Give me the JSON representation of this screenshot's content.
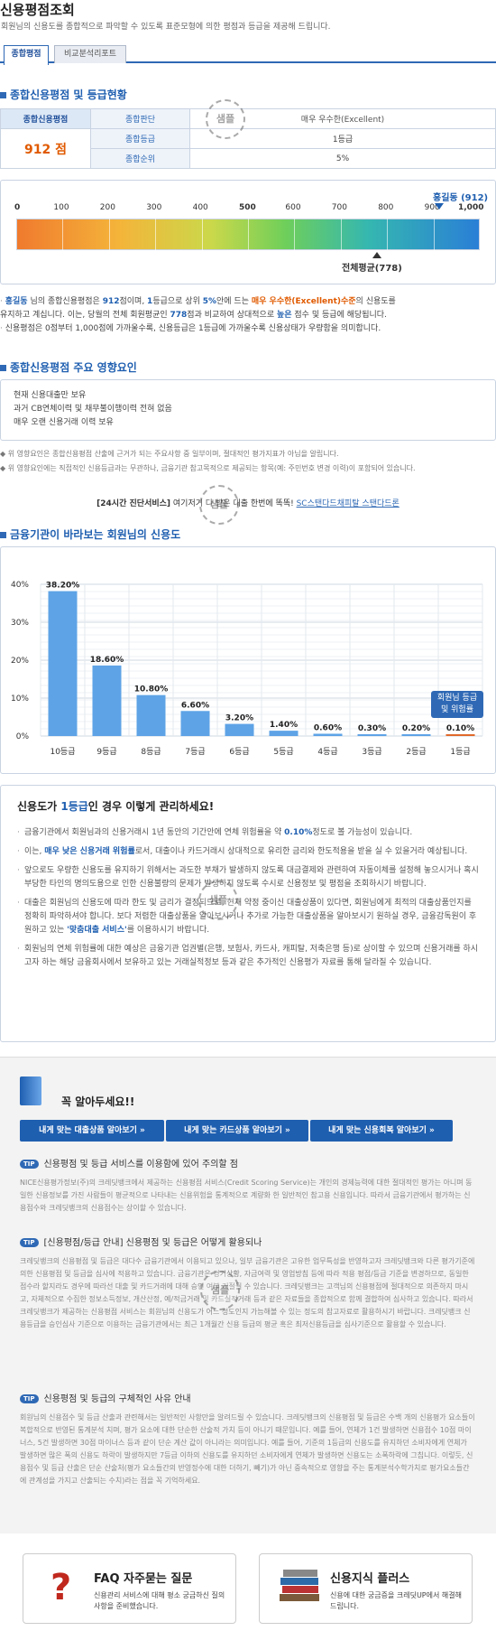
{
  "header": {
    "title": "신용평점조회",
    "subtitle": "회원님의 신용도를 종합적으로 파악할 수 있도록 표준모형에 의한 평점과 등급을 제공해 드립니다."
  },
  "tabs": [
    {
      "label": "종합평점",
      "active": true
    },
    {
      "label": "비교분석리포트",
      "active": false
    }
  ],
  "stamp_text": "샘플",
  "summary": {
    "heading": "종합신용평점 및 등급현황",
    "score_label": "종합신용평점",
    "score_value": "912 점",
    "rows": [
      {
        "label": "종합판단",
        "value": "매우 우수한(Excellent)"
      },
      {
        "label": "종합등급",
        "value": "1등급"
      },
      {
        "label": "종합순위",
        "value": "5%"
      }
    ]
  },
  "scale": {
    "ticks": [
      "0",
      "100",
      "200",
      "300",
      "400",
      "500",
      "600",
      "700",
      "800",
      "900",
      "1,000"
    ],
    "user_marker_label": "홍길동 (912)",
    "avg_marker_label": "전체평균(778)",
    "user_score": 912,
    "avg_score": 778,
    "max": 1000
  },
  "summary_text": {
    "name": "홍길동",
    "line1_a": " 님의 종합신용평점은 ",
    "score": "912",
    "line1_b": "점이며, ",
    "grade": "1",
    "line1_c": "등급으로 상위 ",
    "pct": "5%",
    "line1_d": "안에 드는 ",
    "judgement": "매우 우수한(Excellent)수준",
    "line1_e": "의 신용도를",
    "line2_a": "유지하고 계십니다. 이는, 당월의 전체 회원평균인 ",
    "avg": "778",
    "line2_b": "점과 비교하여 상대적으로 ",
    "compare": "높은",
    "line2_c": " 점수 및 등급에 해당됩니다.",
    "line3": "신용평점은 0점부터 1,000점에 가까울수록, 신용등급은 1등급에 가까울수록 신용상태가 우량함을 의미합니다."
  },
  "factors": {
    "heading": "종합신용평점 주요 영향요인",
    "items": [
      "현재 신용대출만 보유",
      "과거 CB연체이력 및 채무불이행이력 전혀 없음",
      "매우 오랜 신용거래 이력 보유"
    ],
    "note1": "위 영향요인은 종합신용평점 산출에 근거가 되는 주요사항 중 일부이며, 절대적인 평가지표가 아님을 알립니다.",
    "note2": "위 영향요인에는 직접적인 신용등급과는 무관하나, 금융기관 참고목적으로 제공되는 항목(예: 주민번호 변경 이력)이 포함되어 있습니다."
  },
  "service_line": {
    "bracket": "[24시간 진단서비스]",
    "text": " 여기저기 다 받은 대출 한번에 똑똑! ",
    "link": "SC스탠다드채피탈 스탠다드론"
  },
  "chart_heading": "금융기관이 바라보는 회원님의 신용도",
  "chart_badge": "회원님 등급\n및 위험률",
  "chart_data": {
    "type": "bar",
    "categories": [
      "10등급",
      "9등급",
      "8등급",
      "7등급",
      "6등급",
      "5등급",
      "4등급",
      "3등급",
      "2등급",
      "1등급"
    ],
    "values": [
      38.2,
      18.6,
      10.8,
      6.6,
      3.2,
      1.4,
      0.6,
      0.3,
      0.2,
      0.1
    ],
    "labels": [
      "38.20%",
      "18.60%",
      "10.80%",
      "6.60%",
      "3.20%",
      "1.40%",
      "0.60%",
      "0.30%",
      "0.20%",
      "0.10%"
    ],
    "yticks": [
      "40%",
      "30%",
      "20%",
      "10%",
      "0%"
    ],
    "ylim": [
      0,
      40
    ],
    "highlight_index": 9,
    "colors": {
      "bar": "#5ea3e6",
      "highlight": "#e0692a"
    }
  },
  "manage": {
    "title_a": "신용도가 ",
    "title_grade": "1등급",
    "title_b": "인 경우 이렇게 관리하세요!",
    "items": [
      {
        "a": "금융기관에서 회원님과의 신용거래시 1년 동안의 기간안에 연체 위험률을 약 ",
        "b": "0.10%",
        "c": "정도로 볼 가능성이 있습니다."
      },
      {
        "a": "이는, ",
        "b": "매우 낮은 신용거래 위험률",
        "c": "로서, 대출이나 카드거래시 상대적으로 유리한 금리와 한도적용을 받을 실 수 있을거라 예상됩니다."
      },
      {
        "a": "앞으로도 우량한 신용도를 유지하기 위해서는 과도한 부채가 발생하지 않도록 대금결제와 관련하여 자동이체를 설정해 놓으시거나 혹시 부당한 타인의 명의도용으로 인한 신용불량의 문제가 발생하지 않도록 수시로 신용정보 및 평점을 조회하시기 바랍니다.",
        "b": "",
        "c": ""
      },
      {
        "a": "대출은 회원님의 신용도에 따라 한도 및 금리가 결정되므로, 현재 약정 중이신 대출상품이 있다면, 회원님에게 최적의 대출상품인지를 정확히 파악하셔야 합니다. 보다 저렴한 대출상품을 알아보시거나 추가로 가능한 대출상품을 알아보시기 원하실 경우, 금융감독원이 후원하고 있는 ",
        "b": "'맞춤대출 서비스'",
        "c": "를 이용하시기 바랍니다."
      },
      {
        "a": "회원님의 연체 위험률에 대한 예상은 금융기관 업권별(은행, 보험사, 카드사, 캐피탈, 저축은행 등)로 상이할 수 있으며 신용거래를 하시고자 하는 해당 금융회사에서 보유하고 있는 거래실적정보 등과 같은 추가적인 신용평가 자료를 통해 달라질 수 있습니다.",
        "b": "",
        "c": ""
      }
    ]
  },
  "must_know": {
    "title": "꼭 알아두세요!!",
    "buttons": [
      "내게 맞는 대출상품 알아보기 »",
      "내게 맞는 카드상품 알아보기 »",
      "내게 맞는 신용회복 알아보기 »"
    ],
    "tip_label": "TIP",
    "tips": [
      {
        "title": "신용평점 및 등급 서비스를 이용함에 있어 주의할 점",
        "body": "NICE신용평가정보(주)의 크레딧뱅크에서 제공하는 신용평점 서비스(Credit Scoring Service)는 개인의 경제능력에 대한 절대적인 평가는 아니며 동일한 신용정보를 가진 사람들이 평균적으로 나타내는 신용위험을 통계적으로 계량화 한 일반적인 참고용 신용입니다. 따라서 금융기관에서 평가하는 신용점수와 크레딧뱅크의 신용점수는 상이할 수 있습니다."
      },
      {
        "title": "[신용평점/등급 안내] 신용평점 및 등급은 어떻게 활용되나",
        "body": "크레딧뱅크의 신용평점 및 등급은 대다수 금융기관에서 이용되고 있으나, 일부 금융기관은 고유한 업무특성을 반영하고자 크레딧뱅크와 다른 평가기준에 의한 신용평점 및 등급을 심사에 적용하고 있습니다. 금융기관은 경기상황, 자금여력 및 영업방침 등에 따라 적용 평점/등급 기준을 변경하므로, 동일한 점수라 할지라도 경우에 따라선 대출 및 카드거래에 대해 승인 여부 거절될 수 있습니다. 크레딧뱅크는 고객님의 신용평점에 절대적으로 의존하지 마시고, 자체적으로 수집한 정보소득정보, 개산산정, 예/적금거래 및 카드실적거래 등과 같은 자료들을 종합적으로 함께 결합하여 심사하고 있습니다. 따라서 크레딧뱅크가 제공하는 신용평점 서비스는 회원님의 신용도가 어느 정도인지 가늠해볼 수 있는 정도의 참고자료로 활용하시기 바랍니다. 크레딧뱅크 신용등급을 승인심사 기준으로 이용하는 금융기관에서는 최근 1개월간 신용 등급의 평균 혹은 최저신용등급을 심사기준으로 활용할 수 있습니다."
      },
      {
        "title": "신용평점 및 등급의 구체적인 사유 안내",
        "body": "회원님의 신용점수 및 등급 산출과 관련해서는 일반적인 사항만을 알려드릴 수 있습니다. 크레딧뱅크의 신용평점 및 등급은 수백 개의 신용평가 요소들이 복합적으로 반영된 통계분석 치며, 평가 요소에 대한 단순한 산술적 가치 등이 아니기 때문입니다. 예를 들어, 연체가 1건 발생하면 신용점수 10점 마이너스, 5건 발생하면 30점 마이너스 등과 같이 단순 계산 값이 아니라는 의미입니다. 예를 들어, 기준의 1등급의 신용도를 유지하던 소비자에게 연체가 발생하면 많은 폭의 신용도 하락이 발생하지만 7등급 이하의 신용도를 유지하던 소비자에게 연체가 발생하면 신용도는 소폭하락에 그칩니다. 이렇듯, 신용점수 및 등급 산출은 단순 산술처(평가 요소들간의 반영정수에 대한 더하기, 빼기)가 아닌 중속적으로 영향을 주는 통계분석수학가치로 평가요소들간에 관계성을 가지고 산출되는 수치)라는 점을 꼭 기억하세요."
      }
    ]
  },
  "cards": [
    {
      "title": "FAQ 자주묻는 질문",
      "desc": "신용관리 서비스에 대해 평소 궁금하신 질의사항을 준비했습니다."
    },
    {
      "title": "신용지식 플러스",
      "desc": "신용에 대한 궁금증을 크레딧UP에서 해결해 드립니다."
    }
  ]
}
